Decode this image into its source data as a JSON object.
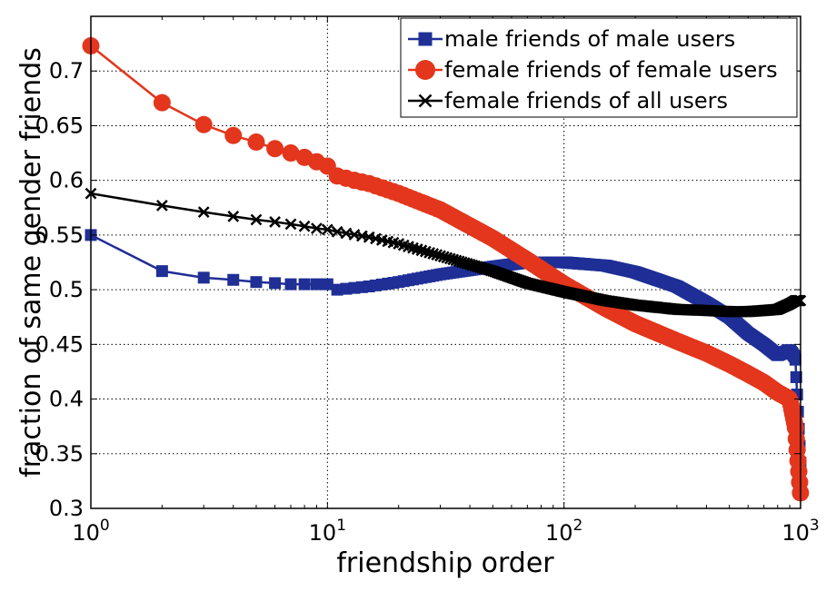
{
  "chart_data": {
    "type": "line",
    "title": "",
    "xlabel": "friendship order",
    "ylabel": "fraction of same gender friends",
    "x_scale": "log",
    "xlim": [
      1,
      1000
    ],
    "ylim": [
      0.3,
      0.75
    ],
    "grid": true,
    "legend_position": "top-right",
    "x_ticks": [
      {
        "value": 1,
        "base": "10",
        "exp": "0"
      },
      {
        "value": 10,
        "base": "10",
        "exp": "1"
      },
      {
        "value": 100,
        "base": "10",
        "exp": "2"
      },
      {
        "value": 1000,
        "base": "10",
        "exp": "3"
      }
    ],
    "y_ticks": [
      {
        "value": 0.3,
        "label": "0.3"
      },
      {
        "value": 0.35,
        "label": "0.35"
      },
      {
        "value": 0.4,
        "label": "0.4"
      },
      {
        "value": 0.45,
        "label": "0.45"
      },
      {
        "value": 0.5,
        "label": "0.5"
      },
      {
        "value": 0.55,
        "label": "0.55"
      },
      {
        "value": 0.6,
        "label": "0.6"
      },
      {
        "value": 0.65,
        "label": "0.65"
      },
      {
        "value": 0.7,
        "label": "0.7"
      }
    ],
    "series": [
      {
        "name": "male friends of male users",
        "color": "#1f2f96",
        "marker": "square",
        "x": [
          1,
          2,
          3,
          4,
          5,
          6,
          7,
          8,
          9,
          10,
          11,
          15,
          20,
          30,
          50,
          70,
          100,
          150,
          200,
          300,
          400,
          500,
          600,
          700,
          800,
          900,
          950,
          1000
        ],
        "y": [
          0.55,
          0.517,
          0.511,
          0.509,
          0.507,
          0.506,
          0.505,
          0.505,
          0.505,
          0.505,
          0.5,
          0.503,
          0.507,
          0.514,
          0.521,
          0.525,
          0.525,
          0.522,
          0.516,
          0.503,
          0.488,
          0.475,
          0.46,
          0.45,
          0.44,
          0.445,
          0.438,
          0.34
        ]
      },
      {
        "name": "female friends of female users",
        "color": "#e3361c",
        "marker": "circle",
        "x": [
          1,
          2,
          3,
          4,
          5,
          6,
          7,
          8,
          9,
          10,
          11,
          13,
          15,
          20,
          30,
          50,
          70,
          100,
          150,
          200,
          300,
          400,
          500,
          600,
          700,
          800,
          900,
          950,
          1000
        ],
        "y": [
          0.723,
          0.671,
          0.651,
          0.641,
          0.635,
          0.629,
          0.625,
          0.621,
          0.617,
          0.613,
          0.604,
          0.6,
          0.597,
          0.588,
          0.573,
          0.547,
          0.527,
          0.505,
          0.483,
          0.469,
          0.453,
          0.442,
          0.432,
          0.423,
          0.415,
          0.406,
          0.4,
          0.375,
          0.313
        ]
      },
      {
        "name": "female friends of all users",
        "color": "#000000",
        "marker": "x",
        "x": [
          1,
          2,
          3,
          4,
          5,
          6,
          7,
          8,
          9,
          10,
          11,
          15,
          20,
          30,
          50,
          70,
          100,
          150,
          200,
          300,
          400,
          500,
          600,
          700,
          800,
          900,
          950,
          1000
        ],
        "y": [
          0.588,
          0.577,
          0.571,
          0.567,
          0.564,
          0.562,
          0.56,
          0.558,
          0.556,
          0.555,
          0.553,
          0.548,
          0.542,
          0.531,
          0.517,
          0.506,
          0.498,
          0.49,
          0.486,
          0.482,
          0.481,
          0.48,
          0.48,
          0.481,
          0.482,
          0.487,
          0.49,
          0.49
        ]
      }
    ]
  }
}
